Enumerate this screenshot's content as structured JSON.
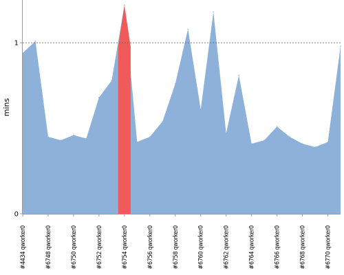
{
  "chart_data": {
    "type": "area",
    "ylabel": "mins",
    "ylim": [
      0,
      1.25
    ],
    "yticks": [
      {
        "value": 0,
        "label": "0"
      },
      {
        "value": 1,
        "label": "1"
      }
    ],
    "reference_line": {
      "value": 1,
      "style": "dashed"
    },
    "x_tick_labels": [
      "#4434 qworker0",
      "#6748 qworker0",
      "#6750 qworker0",
      "#6752 qworker0",
      "#6754 qworker0",
      "#6756 qworker0",
      "#6758 qworker0",
      "#6760 qworker0",
      "#6762 qworker0",
      "#6764 qworker0",
      "#6766 qworker0",
      "#6768 qworker0",
      "#6770 qworker0"
    ],
    "series": [
      {
        "values": [
          0.94,
          1.01,
          0.45,
          0.43,
          0.46,
          0.44,
          0.68,
          0.78,
          1.22,
          0.42,
          0.45,
          0.54,
          0.76,
          1.08,
          0.61,
          1.18,
          0.47,
          0.81,
          0.41,
          0.43,
          0.51,
          0.45,
          0.41,
          0.39,
          0.42,
          0.98
        ],
        "highlight_index": 8
      }
    ],
    "colors": {
      "area": "#8eb1da",
      "highlight": "#f05a5a",
      "reference_line": "#666666",
      "axis": "#999999"
    },
    "grid": false
  }
}
